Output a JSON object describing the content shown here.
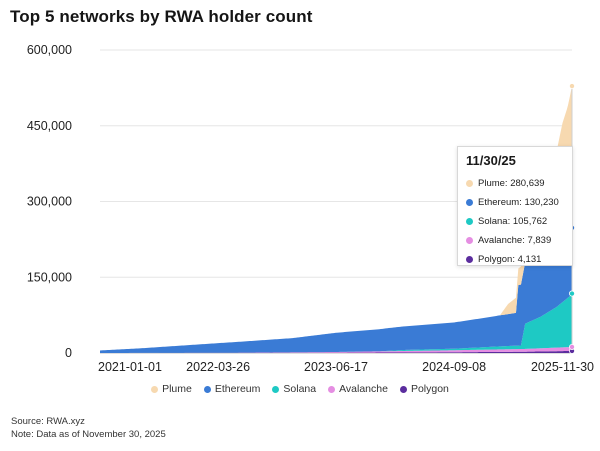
{
  "chart_data": {
    "type": "area",
    "title": "Top 5 networks by RWA holder count",
    "stacked": true,
    "xlabel": "",
    "ylabel": "",
    "x_start": "2021-01-01",
    "x_end": "2025-11-30",
    "x_ticks": [
      "2021-01-01",
      "2022-03-26",
      "2023-06-17",
      "2024-09-08",
      "2025-11-30"
    ],
    "ylim": [
      0,
      600000
    ],
    "y_ticks": [
      "0",
      "150,000",
      "300,000",
      "450,000",
      "600,000"
    ],
    "y_tick_values": [
      0,
      150000,
      300000,
      450000,
      600000
    ],
    "legend_position": "bottom",
    "grid": "horizontal",
    "series": [
      {
        "name": "Polygon",
        "color": "#5b2d9e",
        "points": [
          [
            "2021-01-01",
            0
          ],
          [
            "2023-06-01",
            500
          ],
          [
            "2024-09-08",
            1500
          ],
          [
            "2025-06-01",
            2500
          ],
          [
            "2025-11-30",
            4131
          ]
        ]
      },
      {
        "name": "Avalanche",
        "color": "#e58ee2",
        "points": [
          [
            "2021-01-01",
            0
          ],
          [
            "2022-06-01",
            300
          ],
          [
            "2023-06-17",
            1500
          ],
          [
            "2024-09-08",
            4000
          ],
          [
            "2025-06-01",
            5500
          ],
          [
            "2025-11-30",
            7839
          ]
        ]
      },
      {
        "name": "Solana",
        "color": "#1ec9c4",
        "points": [
          [
            "2021-01-01",
            0
          ],
          [
            "2023-12-01",
            0
          ],
          [
            "2024-03-01",
            2000
          ],
          [
            "2024-09-08",
            3000
          ],
          [
            "2025-03-01",
            6000
          ],
          [
            "2025-05-20",
            7000
          ],
          [
            "2025-06-05",
            50000
          ],
          [
            "2025-08-01",
            62000
          ],
          [
            "2025-10-01",
            80000
          ],
          [
            "2025-11-20",
            100000
          ],
          [
            "2025-11-30",
            105762
          ]
        ]
      },
      {
        "name": "Ethereum",
        "color": "#3a7bd5",
        "points": [
          [
            "2021-01-01",
            5000
          ],
          [
            "2021-06-01",
            9000
          ],
          [
            "2022-03-26",
            19000
          ],
          [
            "2023-01-01",
            28000
          ],
          [
            "2023-06-17",
            38000
          ],
          [
            "2024-01-01",
            45000
          ],
          [
            "2024-09-08",
            52000
          ],
          [
            "2025-01-01",
            58000
          ],
          [
            "2025-05-01",
            65000
          ],
          [
            "2025-05-10",
            120000
          ],
          [
            "2025-08-01",
            125000
          ],
          [
            "2025-11-10",
            125000
          ],
          [
            "2025-11-20",
            128000
          ],
          [
            "2025-11-30",
            130230
          ]
        ]
      },
      {
        "name": "Plume",
        "color": "#f7d9b0",
        "points": [
          [
            "2021-01-01",
            0
          ],
          [
            "2025-03-01",
            0
          ],
          [
            "2025-04-01",
            20000
          ],
          [
            "2025-06-01",
            40000
          ],
          [
            "2025-07-15",
            65000
          ],
          [
            "2025-09-01",
            130000
          ],
          [
            "2025-10-01",
            180000
          ],
          [
            "2025-10-25",
            230000
          ],
          [
            "2025-11-15",
            255000
          ],
          [
            "2025-11-30",
            280639
          ]
        ]
      }
    ],
    "legend": [
      {
        "name": "Plume",
        "color": "#f7d9b0"
      },
      {
        "name": "Ethereum",
        "color": "#3a7bd5"
      },
      {
        "name": "Solana",
        "color": "#1ec9c4"
      },
      {
        "name": "Avalanche",
        "color": "#e58ee2"
      },
      {
        "name": "Polygon",
        "color": "#5b2d9e"
      }
    ],
    "tooltip": {
      "title": "11/30/25",
      "rows": [
        {
          "label": "Plume: 280,639",
          "color": "#f7d9b0"
        },
        {
          "label": "Ethereum: 130,230",
          "color": "#3a7bd5"
        },
        {
          "label": "Solana: 105,762",
          "color": "#1ec9c4"
        },
        {
          "label": "Avalanche: 7,839",
          "color": "#e58ee2"
        },
        {
          "label": "Polygon: 4,131",
          "color": "#5b2d9e"
        }
      ]
    }
  },
  "footer": {
    "source": "Source: RWA.xyz",
    "note": "Note: Data as of November 30, 2025"
  }
}
